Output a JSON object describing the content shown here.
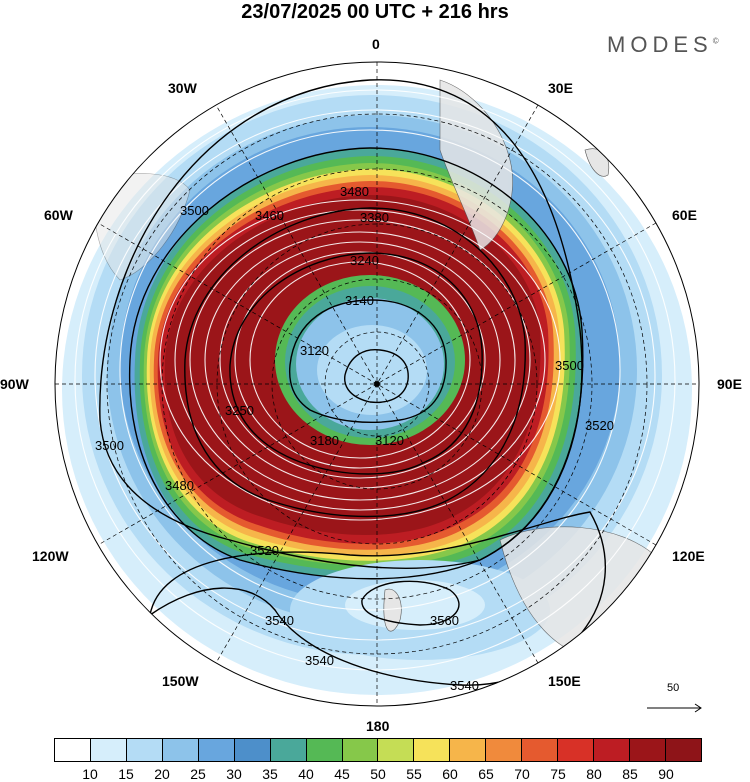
{
  "title": "23/07/2025  00 UTC  + 216 hrs",
  "brand": "MODES",
  "brand_mark": "©",
  "longitude_labels": {
    "lon_0": "0",
    "lon_30e": "30E",
    "lon_60e": "60E",
    "lon_90e": "90E",
    "lon_120e": "120E",
    "lon_150e": "150E",
    "lon_180": "180",
    "lon_150w": "150W",
    "lon_120w": "120W",
    "lon_90w": "90W",
    "lon_60w": "60W",
    "lon_30w": "30W"
  },
  "contour_labels": [
    "3480",
    "3500",
    "3460",
    "3380",
    "3240",
    "3140",
    "3120",
    "3180",
    "3250",
    "3520",
    "3500",
    "3480",
    "3520",
    "3540",
    "3560",
    "3540",
    "3540",
    "3500",
    "3120"
  ],
  "reference_vector": {
    "label": "50"
  },
  "colorbar": {
    "labels": [
      "10",
      "15",
      "20",
      "25",
      "30",
      "35",
      "40",
      "45",
      "50",
      "55",
      "60",
      "65",
      "70",
      "75",
      "80",
      "85",
      "90"
    ],
    "colors": [
      "#ffffff",
      "#d6eefb",
      "#b4dcf5",
      "#8dc3ea",
      "#68a6de",
      "#4d8fca",
      "#4aa89a",
      "#55b955",
      "#86c84a",
      "#c5dd55",
      "#f6e25a",
      "#f6b54a",
      "#f08a3c",
      "#e55a2f",
      "#d83127",
      "#bd1d23",
      "#9b1519",
      "#8e1418"
    ]
  },
  "colors": {
    "map_bg": "#ffffff",
    "contour": "#000000",
    "graticule": "#000000",
    "streamline": "#ffffff"
  }
}
